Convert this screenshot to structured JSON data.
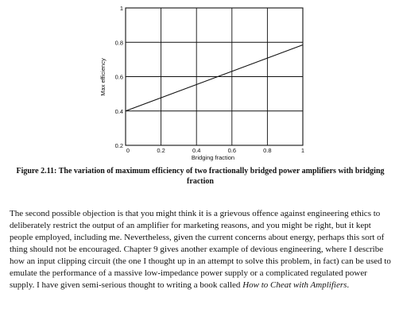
{
  "chart_data": {
    "type": "line",
    "xlabel": "Bridging fraction",
    "ylabel": "Max efficiency",
    "xlim": [
      0,
      1
    ],
    "ylim": [
      0.2,
      1
    ],
    "x_ticks": [
      "0",
      "0.2",
      "0.4",
      "0.6",
      "0.8",
      "1"
    ],
    "y_ticks": [
      "0.2",
      "0.4",
      "0.6",
      "0.8",
      "1"
    ],
    "grid": true,
    "series": [
      {
        "x": [
          0,
          1
        ],
        "y": [
          0.4,
          0.785
        ]
      }
    ]
  },
  "caption": {
    "label": "Figure 2.11:",
    "text": "The variation of maximum efficiency of two fractionally bridged power amplifiers with bridging fraction"
  },
  "body": {
    "text_before": "The second possible objection is that you might think it is a grievous offence against engineering ethics to deliberately restrict the output of an amplifier for marketing reasons, and you might be right, but it kept people employed, including me. Nevertheless, given the current concerns about energy, perhaps this sort of thing should not be encouraged. Chapter 9 gives another example of devious engineering, where I describe how an input clipping circuit (the one I thought up in an attempt to solve this problem, in fact) can be used to emulate the performance of a massive low-impedance power supply or a complicated regulated power supply. I have given semi-serious thought to writing a book called ",
    "book_title": "How to Cheat with Amplifiers",
    "text_after": "."
  }
}
